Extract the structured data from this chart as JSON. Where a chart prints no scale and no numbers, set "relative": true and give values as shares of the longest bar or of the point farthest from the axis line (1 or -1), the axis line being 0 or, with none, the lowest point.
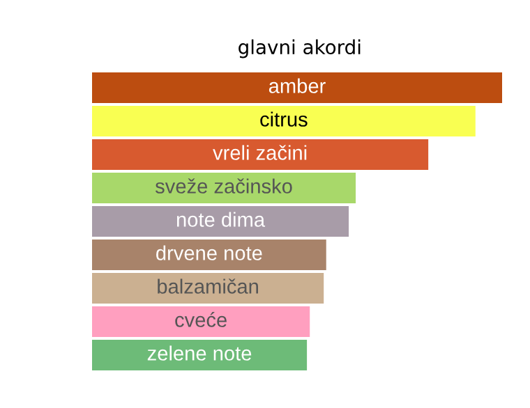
{
  "chart_data": {
    "type": "bar",
    "orientation": "horizontal",
    "relative": true,
    "title": "glavni akordi",
    "categories": [
      "amber",
      "citrus",
      "vreli začini",
      "sveže začinsko",
      "note dima",
      "drvene note",
      "balzamičan",
      "cveće",
      "zelene note"
    ],
    "values": [
      1,
      0.935,
      0.82,
      0.643,
      0.626,
      0.571,
      0.565,
      0.531,
      0.524
    ],
    "colors": [
      "#bc4d10",
      "#f9ff52",
      "#d85a2f",
      "#a8d86a",
      "#a89ca8",
      "#a8836a",
      "#cbb091",
      "#ff9fbf",
      "#6dbb78"
    ]
  }
}
